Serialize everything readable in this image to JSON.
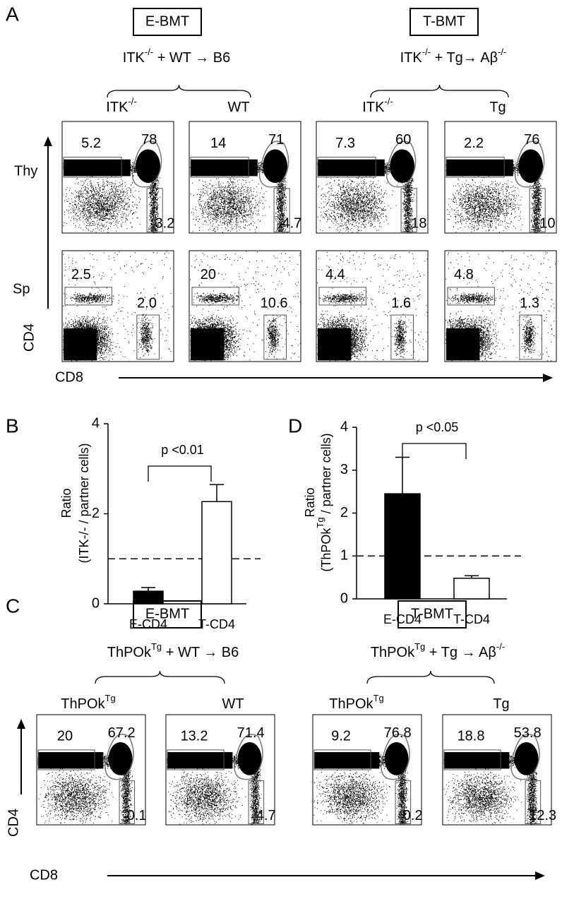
{
  "panel_a": {
    "label": "A",
    "headers": [
      {
        "title": "E-BMT",
        "cross": [
          {
            "text": "ITK",
            "sup": "-/-"
          },
          {
            "text": " + WT → B6"
          }
        ],
        "donors": [
          [
            {
              "text": "ITK",
              "sup": "-/-"
            }
          ],
          [
            {
              "text": "WT"
            }
          ]
        ]
      },
      {
        "title": "T-BMT",
        "cross": [
          {
            "text": "ITK",
            "sup": "-/-"
          },
          {
            "text": " + Tg→ Aβ",
            "sup": "-/-"
          }
        ],
        "donors": [
          [
            {
              "text": "ITK",
              "sup": "-/-"
            }
          ],
          [
            {
              "text": "Tg"
            }
          ]
        ]
      }
    ],
    "rows": [
      {
        "label": "Thy",
        "gates": [
          [
            "5.2",
            "78",
            "3.2"
          ],
          [
            "14",
            "71",
            "4.7"
          ],
          [
            "7.3",
            "60",
            "18"
          ],
          [
            "2.2",
            "76",
            "10"
          ]
        ]
      },
      {
        "label": "Sp",
        "gates": [
          [
            "2.5",
            "2.0"
          ],
          [
            "20",
            "10.6"
          ],
          [
            "4.4",
            "1.6"
          ],
          [
            "4.8",
            "1.3"
          ]
        ]
      }
    ],
    "y_axis": "CD4",
    "x_axis": "CD8"
  },
  "panel_c": {
    "label": "C",
    "headers": [
      {
        "title": "E-BMT",
        "cross": [
          {
            "text": "ThPOk",
            "sup": "Tg"
          },
          {
            "text": "  + WT → B6"
          }
        ],
        "donors": [
          [
            {
              "text": "ThPOk",
              "sup": "Tg"
            }
          ],
          [
            {
              "text": "WT"
            }
          ]
        ]
      },
      {
        "title": "T-BMT",
        "cross": [
          {
            "text": "ThPOk",
            "sup": "Tg"
          },
          {
            "text": " + Tg → Aβ",
            "sup": "-/-"
          }
        ],
        "donors": [
          [
            {
              "text": "ThPOk",
              "sup": "Tg"
            }
          ],
          [
            {
              "text": "Tg"
            }
          ]
        ]
      }
    ],
    "gates": [
      [
        "20",
        "67.2",
        "0.1"
      ],
      [
        "13.2",
        "71.4",
        "4.7"
      ],
      [
        "9.2",
        "76.8",
        "0.2"
      ],
      [
        "18.8",
        "53.8",
        "12.3"
      ]
    ],
    "y_axis": "CD4",
    "x_axis": "CD8"
  },
  "chart_data": [
    {
      "type": "bar",
      "panel_label": "B",
      "y_label": [
        [
          {
            "text": "Ratio"
          }
        ],
        [
          {
            "text": "(ITK-/- / partner cells)"
          }
        ]
      ],
      "categories": [
        "E-CD4",
        "T-CD4"
      ],
      "values": [
        0.28,
        2.27
      ],
      "errors": [
        0.08,
        0.38
      ],
      "colors": [
        "#000000",
        "#ffffff"
      ],
      "ylim": [
        0,
        4
      ],
      "yticks": [
        0,
        2,
        4
      ],
      "reference_line": 1,
      "annotation": "p <0.01"
    },
    {
      "type": "bar",
      "panel_label": "D",
      "y_label": [
        [
          {
            "text": "Ratio"
          }
        ],
        [
          {
            "text": "(ThPOk",
            "sup": "Tg"
          },
          {
            "text": " / partner cells)"
          }
        ]
      ],
      "categories": [
        "E-CD4",
        "T-CD4"
      ],
      "values": [
        2.45,
        0.48
      ],
      "errors": [
        0.85,
        0.06
      ],
      "colors": [
        "#000000",
        "#ffffff"
      ],
      "ylim": [
        0,
        4
      ],
      "yticks": [
        0,
        1,
        2,
        3,
        4
      ],
      "reference_line": 1,
      "annotation": "p <0.05"
    }
  ]
}
